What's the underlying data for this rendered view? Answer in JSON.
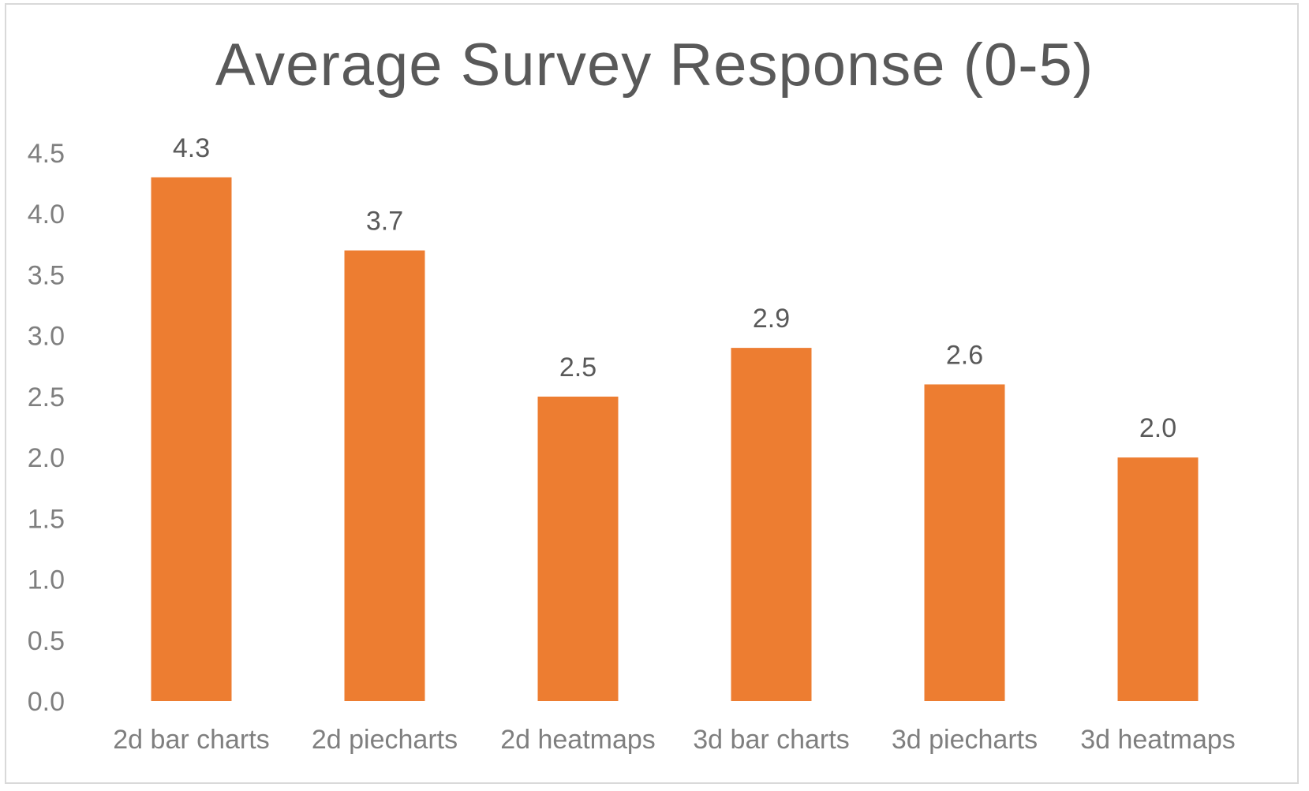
{
  "chart_data": {
    "type": "bar",
    "title": "Average Survey Response (0-5)",
    "xlabel": "",
    "ylabel": "",
    "categories": [
      "2d bar charts",
      "2d piecharts",
      "2d heatmaps",
      "3d bar charts",
      "3d piecharts",
      "3d heatmaps"
    ],
    "values": [
      4.3,
      3.7,
      2.5,
      2.9,
      2.6,
      2.0
    ],
    "data_labels": [
      "4.3",
      "3.7",
      "2.5",
      "2.9",
      "2.6",
      "2.0"
    ],
    "y_ticks": [
      "0.0",
      "0.5",
      "1.0",
      "1.5",
      "2.0",
      "2.5",
      "3.0",
      "3.5",
      "4.0",
      "4.5"
    ],
    "ylim": [
      0,
      4.5
    ],
    "grid": false,
    "legend": "none",
    "bar_color": "#ED7D31",
    "text_color": "#595959"
  }
}
